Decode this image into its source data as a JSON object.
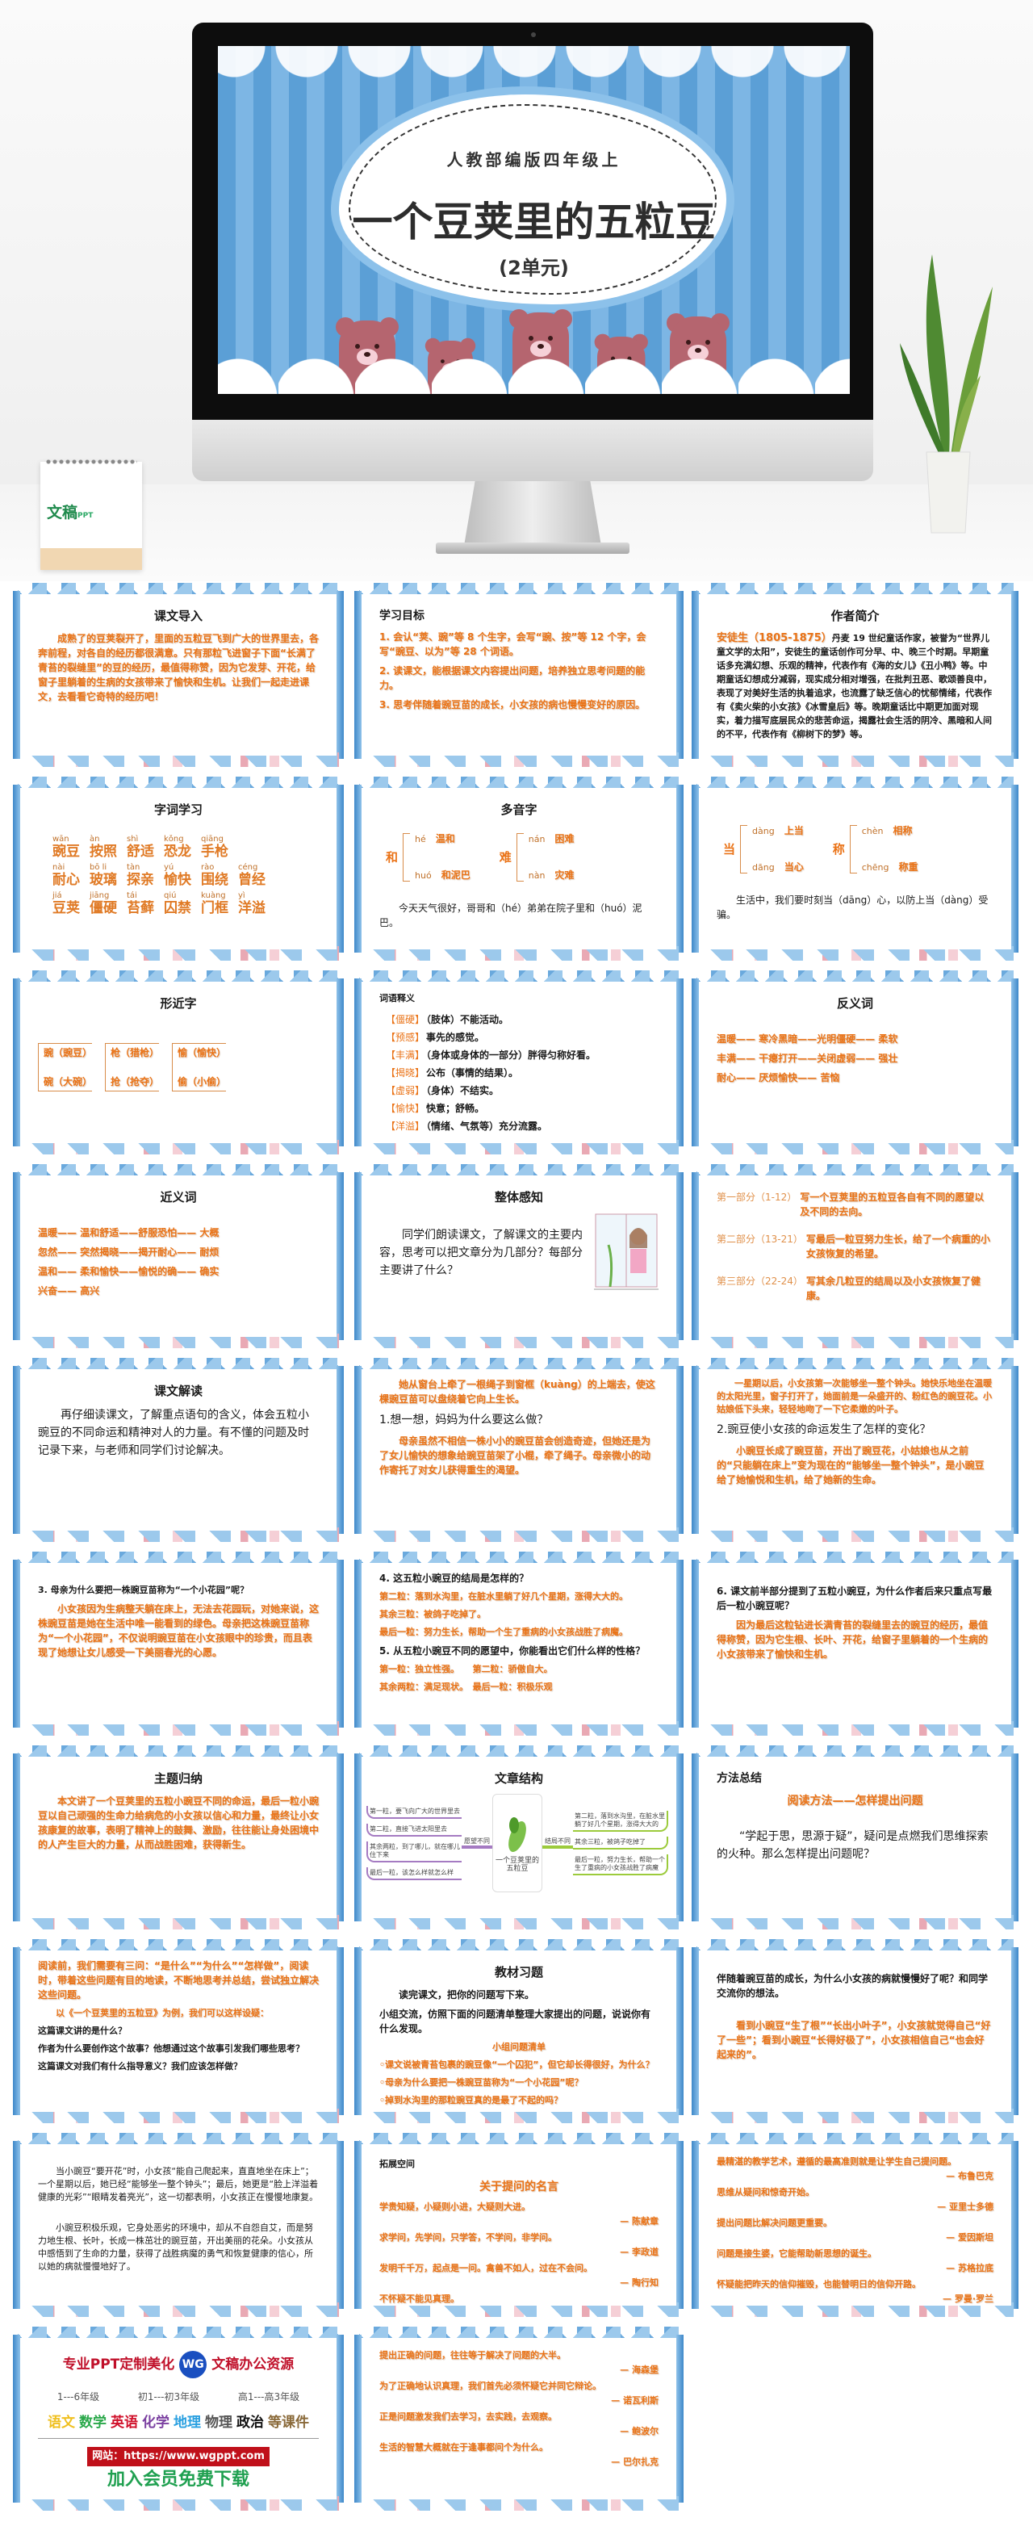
{
  "hero": {
    "subtitle": "人教部编版四年级上",
    "title": "一个豆荚里的五粒豆",
    "unit": "(2单元)",
    "calendar_logo": "文稿",
    "calendar_logo_suffix": "PPT",
    "colors": {
      "screen_stripe": "#5b9fd6",
      "bear": "#b5656f",
      "bear_belly": "#f6d0d8"
    }
  },
  "colors": {
    "orange_text": "#ea7317",
    "frame_blue": "#3e88c9"
  },
  "cards": [
    {
      "blocks": [
        {
          "k": "title",
          "text": "课文导入"
        },
        {
          "k": "p",
          "c": "o",
          "indent": true,
          "text": "成熟了的豆荚裂开了，里面的五粒豆飞到广大的世界里去，各奔前程，对各自的经历都很满意。只有那粒飞进窗子下面“长满了青苔的裂缝里”的豆的经历，最值得称赞，因为它发芽、开花，给窗子里躺着的生病的女孩带来了愉快和生机。让我们一起走进课文，去看看它奇特的经历吧！"
        }
      ]
    },
    {
      "blocks": [
        {
          "k": "title-left",
          "text": "学习目标"
        },
        {
          "k": "p",
          "c": "o",
          "text": "1. 会认“荚、豌”等 8 个生字，会写“豌、按”等 12 个字，会写“豌豆、以为”等 28 个词语。"
        },
        {
          "k": "p",
          "c": "o",
          "text": "2. 读课文，能根据课文内容提出问题，培养独立思考问题的能力。"
        },
        {
          "k": "p",
          "c": "o",
          "text": "3. 思考伴随着豌豆苗的成长，小女孩的病也慢慢变好的原因。"
        }
      ]
    },
    {
      "blocks": [
        {
          "k": "title",
          "text": "作者简介"
        },
        {
          "k": "intro",
          "lead": "安徒生（1805-1875）",
          "text": "丹麦 19 世纪童话作家，被誉为“世界儿童文学的太阳”，安徒生的童话创作可分早、中、晚三个时期。早期童话多充满幻想、乐观的精神，代表作有《海的女儿》《丑小鸭》等。中期童话幻想成分减弱，现实成分相对增强，在批判丑恶、歌颂善良中，表现了对美好生活的执着追求，也流露了缺乏信心的忧郁情绪，代表作有《卖火柴的小女孩》《冰雪皇后》等。晚期童话比中期更加面对现实，着力描写底层民众的悲苦命运，揭露社会生活的阴冷、黑暗和人间的不平，代表作有《柳树下的梦》等。"
        }
      ]
    },
    {
      "blocks": [
        {
          "k": "title",
          "text": "字词学习"
        },
        {
          "k": "pinyin",
          "rows": [
            [
              {
                "py": "wān",
                "w": "豌豆"
              },
              {
                "py": "àn",
                "w": "按照"
              },
              {
                "py": "shì",
                "w": "舒适"
              },
              {
                "py": "kǒng",
                "w": "恐龙"
              },
              {
                "py": "qiāng",
                "w": "手枪"
              }
            ],
            [
              {
                "py": "nài",
                "w": "耐心"
              },
              {
                "py": "bō li",
                "w": "玻璃"
              },
              {
                "py": "tàn",
                "w": "探亲"
              },
              {
                "py": "yú",
                "w": "愉快"
              },
              {
                "py": "rào",
                "w": "围绕"
              },
              {
                "py": "céng",
                "w": "曾经"
              }
            ],
            [
              {
                "py": "jiá",
                "w": "豆荚"
              },
              {
                "py": "jiāng",
                "w": "僵硬"
              },
              {
                "py": "tái",
                "w": "苔藓"
              },
              {
                "py": "qiú",
                "w": "囚禁"
              },
              {
                "py": "kuàng",
                "w": "门框"
              },
              {
                "py": "yì",
                "w": "洋溢"
              }
            ]
          ]
        }
      ]
    },
    {
      "blocks": [
        {
          "k": "title",
          "text": "多音字"
        },
        {
          "k": "poly",
          "groups": [
            {
              "ch": "和",
              "items": [
                {
                  "py": "hé",
                  "w": "温和"
                },
                {
                  "py": "huó",
                  "w": "和泥巴"
                }
              ]
            },
            {
              "ch": "难",
              "items": [
                {
                  "py": "nán",
                  "w": "困难"
                },
                {
                  "py": "nàn",
                  "w": "灾难"
                }
              ]
            }
          ]
        },
        {
          "k": "p",
          "c": "b",
          "indent": true,
          "text": "今天天气很好，哥哥和（hé）弟弟在院子里和（huó）泥巴。"
        }
      ]
    },
    {
      "blocks": [
        {
          "k": "spacer"
        },
        {
          "k": "poly",
          "groups": [
            {
              "ch": "当",
              "items": [
                {
                  "py": "dàng",
                  "w": "上当"
                },
                {
                  "py": "dāng",
                  "w": "当心"
                }
              ]
            },
            {
              "ch": "称",
              "items": [
                {
                  "py": "chèn",
                  "w": "相称"
                },
                {
                  "py": "chēng",
                  "w": "称重"
                }
              ]
            }
          ]
        },
        {
          "k": "p",
          "c": "b",
          "indent": true,
          "text": "生活中，我们要时刻当（dāng）心，以防上当（dàng）受骗。"
        }
      ]
    },
    {
      "blocks": [
        {
          "k": "title",
          "text": "形近字"
        },
        {
          "k": "xingjin",
          "groups": [
            [
              "豌（豌豆）",
              "碗（大碗）"
            ],
            [
              "枪（猎枪）",
              "抢（抢夺）"
            ],
            [
              "愉（愉快）",
              "偷（小偷）"
            ]
          ]
        }
      ]
    },
    {
      "blocks": [
        {
          "k": "sub-left",
          "text": "词语释义"
        },
        {
          "k": "gloss",
          "items": [
            {
              "term": "【僵硬】",
              "def": "（肢体）不能活动。"
            },
            {
              "term": "【预感】",
              "def": "事先的感觉。"
            },
            {
              "term": "【丰满】",
              "def": "（身体或身体的一部分）胖得匀称好看。"
            },
            {
              "term": "【揭晓】",
              "def": "公布（事情的结果）。"
            },
            {
              "term": "【虚弱】",
              "def": "（身体）不结实。"
            },
            {
              "term": "【愉快】",
              "def": "快意；舒畅。"
            },
            {
              "term": "【洋溢】",
              "def": "（情绪、气氛等）充分流露。"
            }
          ]
        }
      ]
    },
    {
      "blocks": [
        {
          "k": "title",
          "text": "反义词"
        },
        {
          "k": "spacer"
        },
        {
          "k": "p",
          "c": "o",
          "text": "温暖—— 寒冷黑暗——光明僵硬—— 柔软"
        },
        {
          "k": "p",
          "c": "o",
          "text": "丰满—— 干瘪打开——关闭虚弱—— 强壮"
        },
        {
          "k": "p",
          "c": "o",
          "text": "耐心—— 厌烦愉快—— 苦恼"
        }
      ]
    },
    {
      "blocks": [
        {
          "k": "title",
          "text": "近义词"
        },
        {
          "k": "spacer"
        },
        {
          "k": "p",
          "c": "o",
          "text": "温暖—— 温和舒适——舒服恐怕—— 大概"
        },
        {
          "k": "p",
          "c": "o",
          "text": "忽然—— 突然揭晓——揭开耐心—— 耐烦"
        },
        {
          "k": "p",
          "c": "o",
          "text": "温和—— 柔和愉快——愉悦的确—— 确实"
        },
        {
          "k": "p",
          "c": "o",
          "text": "兴奋—— 高兴"
        }
      ]
    },
    {
      "blocks": [
        {
          "k": "title",
          "text": "整体感知"
        },
        {
          "k": "window",
          "icon": "girl-at-window-illustration",
          "c": "b",
          "text": "同学们朗读课文，了解课文的主要内容，思考可以把文章分为几部分？每部分主要讲了什么？"
        }
      ]
    },
    {
      "blocks": [
        {
          "k": "part",
          "label": "第一部分（1-12）",
          "text": "写一个豆荚里的五粒豆各自有不同的愿望以及不同的去向。"
        },
        {
          "k": "part",
          "label": "第二部分（13-21）",
          "text": "写最后一粒豆努力生长，给了一个病重的小女孩恢复的希望。"
        },
        {
          "k": "part",
          "label": "第三部分（22-24）",
          "text": "写其余几粒豆的结局以及小女孩恢复了健康。"
        }
      ]
    },
    {
      "blocks": [
        {
          "k": "title",
          "text": "课文解读"
        },
        {
          "k": "p",
          "c": "b",
          "size": "l",
          "indent": true,
          "text": "再仔细读课文，了解重点语句的含义，体会五粒小豌豆的不同命运和精神对人的力量。有不懂的问题及时记录下来，与老师和同学们讨论解决。"
        }
      ]
    },
    {
      "blocks": [
        {
          "k": "p",
          "c": "o",
          "indent": true,
          "text": "她从窗台上牵了一根绳子到窗框（kuàng）的上端去，使这棵豌豆苗可以盘绕着它向上生长。"
        },
        {
          "k": "p",
          "c": "b",
          "size": "l",
          "text": "1.想一想，妈妈为什么要这么做？"
        },
        {
          "k": "p",
          "c": "o",
          "indent": true,
          "text": "母亲虽然不相信一株小小的豌豆苗会创造奇迹，但她还是为了女儿愉快的想象给豌豆苗架了小棍，牵了绳子。母亲微小的动作寄托了对女儿获得重生的渴望。"
        }
      ]
    },
    {
      "blocks": [
        {
          "k": "p",
          "c": "o",
          "size": "s",
          "indent": true,
          "text": "一星期以后，小女孩第一次能够坐一整个钟头。她快乐地坐在温暖的太阳光里，窗子打开了，她面前是一朵盛开的、粉红色的豌豆花。小姑娘低下头来，轻轻地吻了一下它柔嫩的叶子。"
        },
        {
          "k": "p",
          "c": "b",
          "size": "l",
          "text": "2.豌豆使小女孩的命运发生了怎样的变化？"
        },
        {
          "k": "p",
          "c": "o",
          "indent": true,
          "text": "小豌豆长成了豌豆苗，开出了豌豆花，小姑娘也从之前的“只能躺在床上”变为现在的“能够坐一整个钟头”，是小豌豆给了她愉悦和生机，给了她新的生命。"
        }
      ]
    },
    {
      "blocks": [
        {
          "k": "spacer"
        },
        {
          "k": "p",
          "c": "b",
          "bold": true,
          "size": "s",
          "text": "3. 母亲为什么要把一株豌豆苗称为“一个小花园”呢？"
        },
        {
          "k": "p",
          "c": "o",
          "indent": true,
          "text": "小女孩因为生病整天躺在床上，无法去花园玩，对她来说，这株豌豆苗是她在生活中唯一能看到的绿色。母亲把这株豌豆苗称为“一个小花园”，不仅说明豌豆苗在小女孩眼中的珍贵，而且表现了她想让女儿感受一下美丽春光的心愿。"
        }
      ]
    },
    {
      "blocks": [
        {
          "k": "p",
          "c": "b",
          "bold": true,
          "text": "4. 这五粒小豌豆的结局是怎样的？"
        },
        {
          "k": "p",
          "c": "o",
          "size": "s",
          "text": "第二粒：落到水沟里，在脏水里躺了好几个星期，涨得大大的。"
        },
        {
          "k": "p",
          "c": "o",
          "size": "s",
          "text": "其余三粒：被鸽子吃掉了。"
        },
        {
          "k": "p",
          "c": "o",
          "size": "s",
          "text": "最后一粒：努力生长，帮助一个生了重病的小女孩战胜了病魔。"
        },
        {
          "k": "p",
          "c": "b",
          "bold": true,
          "text": "5. 从五粒小豌豆不同的愿望中，你能看出它们什么样的性格？"
        },
        {
          "k": "p",
          "c": "o",
          "size": "s",
          "text": "第一粒：独立性强。　　第二粒：骄傲自大。"
        },
        {
          "k": "p",
          "c": "o",
          "size": "s",
          "text": "其余两粒：满足现状。　最后一粒：积极乐观"
        }
      ]
    },
    {
      "blocks": [
        {
          "k": "spacer"
        },
        {
          "k": "p",
          "c": "b",
          "bold": true,
          "text": "6. 课文前半部分提到了五粒小豌豆，为什么作者后来只重点写最后一粒小豌豆呢？"
        },
        {
          "k": "p",
          "c": "o",
          "indent": true,
          "text": "因为最后这粒钻进长满青苔的裂缝里去的豌豆的经历，最值得称赞，因为它生根、长叶、开花，给窗子里躺着的一个生病的小女孩带来了愉快和生机。"
        }
      ]
    },
    {
      "blocks": [
        {
          "k": "title",
          "text": "主题归纳"
        },
        {
          "k": "p",
          "c": "o",
          "indent": true,
          "text": "本文讲了一个豆荚里的五粒小豌豆不同的命运，最后一粒小豌豆以自己顽强的生命力给病危的小女孩以信心和力量，最终让小女孩康复的故事，表明了精神上的鼓舞、激励，往往能让身处困境中的人产生巨大的力量，从而战胜困难，获得新生。"
        }
      ]
    },
    {
      "blocks": [
        {
          "k": "title",
          "text": "文章结构"
        },
        {
          "k": "mindmap",
          "center": "一个豆荚里的五粒豆",
          "left_label": "愿望不同",
          "right_label": "结局不同",
          "left": [
            "第一粒，要飞向广大的世界里去",
            "第二粒，直接飞进太阳里去",
            "其余两粒，到了哪儿，就在哪儿住下来",
            "最后一粒，该怎么样就怎么样"
          ],
          "right": [
            "第二粒，落到水沟里，在脏水里躺了好几个星期，涨得大大的",
            "其余三粒，被鸽子吃掉了",
            "最后一粒，努力生长，帮助一个生了重病的小女孩战胜了病魔"
          ]
        }
      ]
    },
    {
      "blocks": [
        {
          "k": "title-left",
          "text": "方法总结"
        },
        {
          "k": "p",
          "c": "o",
          "size": "l",
          "center": true,
          "text": "阅读方法——怎样提出问题"
        },
        {
          "k": "spacer"
        },
        {
          "k": "p",
          "c": "b",
          "size": "l",
          "indent": true,
          "text": "“学起于思，思源于疑”，疑问是点燃我们思维探索的火种。那么怎样提出问题呢？"
        }
      ]
    },
    {
      "blocks": [
        {
          "k": "p",
          "c": "o",
          "text": "阅读前，我们需要有三问：“是什么”“为什么”“怎样做”，阅读时，带着这些问题有目的地读，不断地思考并总结，尝试独立解决这些问题。"
        },
        {
          "k": "p",
          "c": "o",
          "size": "s",
          "indent": true,
          "text": "以《一个豆荚里的五粒豆》为例，我们可以这样设疑："
        },
        {
          "k": "p",
          "c": "b",
          "bold": true,
          "size": "s",
          "text": "这篇课文讲的是什么？"
        },
        {
          "k": "p",
          "c": "b",
          "bold": true,
          "size": "s",
          "text": "作者为什么要创作这个故事？他想通过这个故事引发我们哪些思考？"
        },
        {
          "k": "p",
          "c": "b",
          "bold": true,
          "size": "s",
          "text": "这篇课文对我们有什么指导意义？我们应该怎样做？"
        }
      ]
    },
    {
      "blocks": [
        {
          "k": "title",
          "text": "教材习题"
        },
        {
          "k": "p",
          "c": "b",
          "bold": true,
          "indent": true,
          "text": "读完课文，把你的问题写下来。"
        },
        {
          "k": "p",
          "c": "b",
          "bold": true,
          "text": "小组交流，仿照下面的问题清单整理大家提出的问题，说说你有什么发现。"
        },
        {
          "k": "p",
          "c": "o",
          "size": "s",
          "center": true,
          "text": "小组问题清单"
        },
        {
          "k": "p",
          "c": "o",
          "size": "s",
          "text": "◦课文说被青苔包裹的豌豆像“一个囚犯”，但它却长得很好，为什么？"
        },
        {
          "k": "p",
          "c": "o",
          "size": "s",
          "text": "◦母亲为什么要把一株豌豆苗称为“一个小花园”呢？"
        },
        {
          "k": "p",
          "c": "o",
          "size": "s",
          "text": "◦掉到水沟里的那粒豌豆真的是最了不起的吗？"
        },
        {
          "k": "p",
          "c": "b",
          "size": "s",
          "text": "……"
        }
      ]
    },
    {
      "blocks": [
        {
          "k": "spacer"
        },
        {
          "k": "p",
          "c": "b",
          "bold": true,
          "text": "伴随着豌豆苗的成长，为什么小女孩的病就慢慢好了呢？和同学交流你的想法。"
        },
        {
          "k": "spacer"
        },
        {
          "k": "p",
          "c": "o",
          "indent": true,
          "text": "看到小豌豆“生了根”“长出小叶子”，小女孩就觉得自己“好了一些”；看到小豌豆“长得好极了”，小女孩相信自己“也会好起来的”。"
        }
      ]
    },
    {
      "blocks": [
        {
          "k": "spacer"
        },
        {
          "k": "p",
          "c": "b",
          "size": "s",
          "indent": true,
          "text": "当小豌豆“要开花”时，小女孩“能自己爬起来，直直地坐在床上”；一个星期以后，她已经“能够坐一整个钟头”；最后，她更是“脸上洋溢着健康的光彩”“眼睛发着亮光”，这一切都表明，小女孩正在慢慢地康复。"
        },
        {
          "k": "spacer"
        },
        {
          "k": "p",
          "c": "b",
          "size": "s",
          "indent": true,
          "text": "小豌豆积极乐观，它身处恶劣的环境中，却从不自怨自艾，而是努力地生根、长叶，长成一株茁壮的豌豆苗，开出美丽的花朵。小女孩从中感悟到了生命的力量，获得了战胜病魔的勇气和恢复健康的信心，所以她的病就慢慢地好了。"
        }
      ]
    },
    {
      "blocks": [
        {
          "k": "sub-left",
          "text": "拓展空间"
        },
        {
          "k": "p",
          "c": "o",
          "size": "l",
          "center": true,
          "text": "关于提问的名言"
        },
        {
          "k": "quote",
          "text": "学贵知疑，小疑则小进，大疑则大进。",
          "by": "— 陈献章"
        },
        {
          "k": "quote",
          "text": "求学问，先学问，只学答，不学问，非学问。",
          "by": "— 李政道"
        },
        {
          "k": "quote",
          "text": "发明千千万，起点是一问。禽兽不如人，过在不会问。",
          "by": "— 陶行知"
        },
        {
          "k": "quote",
          "text": "不怀疑不能见真理。",
          "by": "— 李四光"
        }
      ]
    },
    {
      "blocks": [
        {
          "k": "quote",
          "text": "最精湛的教学艺术，遵循的最高准则就是让学生自己提问题。",
          "by": "— 布鲁巴克"
        },
        {
          "k": "quote",
          "text": "思维从疑问和惊奇开始。",
          "by": "— 亚里士多德"
        },
        {
          "k": "quote",
          "text": "提出问题比解决问题更重要。",
          "by": "— 爱因斯坦"
        },
        {
          "k": "quote",
          "text": "问题是接生婆，它能帮助新思想的诞生。",
          "by": "— 苏格拉底"
        },
        {
          "k": "quote",
          "text": "怀疑能把昨天的信仰摧毁，也能替明日的信仰开路。",
          "by": "— 罗曼·罗兰"
        }
      ]
    },
    {
      "blocks": [
        {
          "k": "ad",
          "left": "专业PPT定制美化",
          "logo": "WG",
          "right": "文稿办公资源",
          "grades": [
            "1---6年级",
            "初1---初3年级",
            "高1---高3年级"
          ],
          "subjects": [
            {
              "name": "语文",
              "color": "#f0c020"
            },
            {
              "name": "数学",
              "color": "#2aa84a"
            },
            {
              "name": "英语",
              "color": "#d0102a"
            },
            {
              "name": "化学",
              "color": "#7a3fa0"
            },
            {
              "name": "地理",
              "color": "#2aa0e0"
            },
            {
              "name": "物理",
              "color": "#555555"
            },
            {
              "name": "政治",
              "color": "#111111"
            },
            {
              "name": "等课件",
              "color": "#8a6a3a"
            }
          ],
          "site": "网站：https://www.wgppt.com",
          "join": "加入会员免费下载"
        }
      ]
    },
    {
      "blocks": [
        {
          "k": "quote",
          "text": "提出正确的问题，往往等于解决了问题的大半。",
          "by": "— 海森堡"
        },
        {
          "k": "quote",
          "text": "为了正确地认识真理，我们首先必须怀疑它并同它辩论。",
          "by": "— 诺瓦利斯"
        },
        {
          "k": "quote",
          "text": "正是问题激发我们去学习，去实践，去观察。",
          "by": "— 鲍波尔"
        },
        {
          "k": "quote",
          "text": "生活的智慧大概就在于逢事都问个为什么。",
          "by": "— 巴尔扎克"
        }
      ]
    }
  ]
}
